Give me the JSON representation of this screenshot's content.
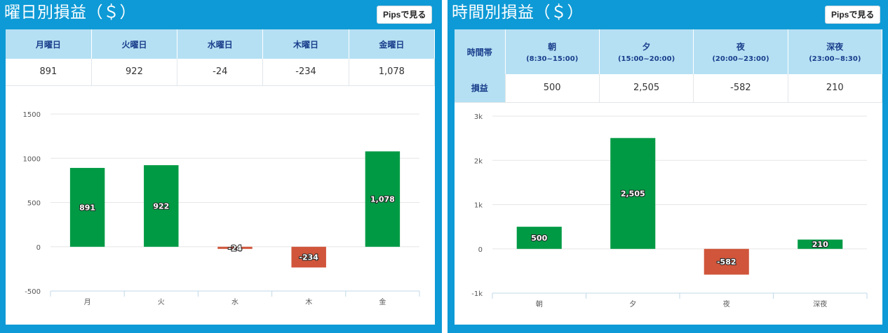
{
  "day_panel": {
    "title": "曜日別損益（＄）",
    "pips_button": "Pipsで見る",
    "table": {
      "headers": [
        "月曜日",
        "火曜日",
        "水曜日",
        "木曜日",
        "金曜日"
      ],
      "values": [
        "891",
        "922",
        "-24",
        "-234",
        "1,078"
      ]
    }
  },
  "time_panel": {
    "title": "時間別損益（＄）",
    "pips_button": "Pipsで見る",
    "table": {
      "corner_header": "時間帯",
      "row_label": "損益",
      "headers": [
        {
          "label": "朝",
          "sub": "(8:30~15:00)"
        },
        {
          "label": "夕",
          "sub": "(15:00~20:00)"
        },
        {
          "label": "夜",
          "sub": "(20:00~23:00)"
        },
        {
          "label": "深夜",
          "sub": "(23:00~8:30)"
        }
      ],
      "values": [
        "500",
        "2,505",
        "-582",
        "210"
      ]
    }
  },
  "chart_data": [
    {
      "type": "bar",
      "categories": [
        "月",
        "火",
        "水",
        "木",
        "金"
      ],
      "values": [
        891,
        922,
        -24,
        -234,
        1078
      ],
      "data_labels": [
        "891",
        "922",
        "-24",
        "-234",
        "1,078"
      ],
      "ylim": [
        -500,
        1500
      ],
      "yticks": [
        -500,
        0,
        500,
        1000,
        1500
      ],
      "ytick_labels": [
        "-500",
        "0",
        "500",
        "1000",
        "1500"
      ],
      "grid": true,
      "positive_color": "#009a44",
      "negative_color": "#d0553a"
    },
    {
      "type": "bar",
      "categories": [
        "朝",
        "夕",
        "夜",
        "深夜"
      ],
      "values": [
        500,
        2505,
        -582,
        210
      ],
      "data_labels": [
        "500",
        "2,505",
        "-582",
        "210"
      ],
      "ylim": [
        -1000,
        3000
      ],
      "yticks": [
        -1000,
        0,
        1000,
        2000,
        3000
      ],
      "ytick_labels": [
        "-1k",
        "0",
        "1k",
        "2k",
        "3k"
      ],
      "grid": true,
      "positive_color": "#009a44",
      "negative_color": "#d0553a"
    }
  ]
}
